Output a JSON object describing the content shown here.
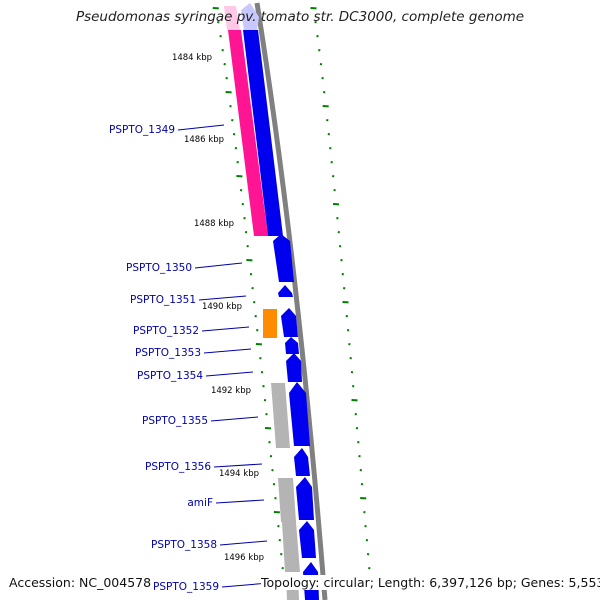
{
  "title": "Pseudomonas syringae pv. tomato str. DC3000, complete genome",
  "footer": {
    "accession": "Accession: NC_004578",
    "summary": "Topology: circular; Length: 6,397,126 bp; Genes: 5,553"
  },
  "colors": {
    "forward_gene": "#0000ee",
    "forward_gene_highlight": "#c8c8ff",
    "rna_gene": "#ff1493",
    "rna_gene_highlight": "#ffc8e6",
    "orange_gene": "#ff8c00",
    "grey_gene": "#b4b4b4",
    "backbone": "#808080",
    "gc_skew": "#008000",
    "label_text": "#0000aa",
    "label_line": "#0000aa",
    "tick_text": "#000000"
  },
  "kbp_ticks": [
    "1484 kbp",
    "1486 kbp",
    "1488 kbp",
    "1490 kbp",
    "1492 kbp",
    "1494 kbp",
    "1496 kbp"
  ],
  "gene_labels": [
    "PSPTO_1349",
    "PSPTO_1350",
    "PSPTO_1351",
    "PSPTO_1352",
    "PSPTO_1353",
    "PSPTO_1354",
    "PSPTO_1355",
    "PSPTO_1356",
    "amiF",
    "PSPTO_1358",
    "PSPTO_1359"
  ]
}
